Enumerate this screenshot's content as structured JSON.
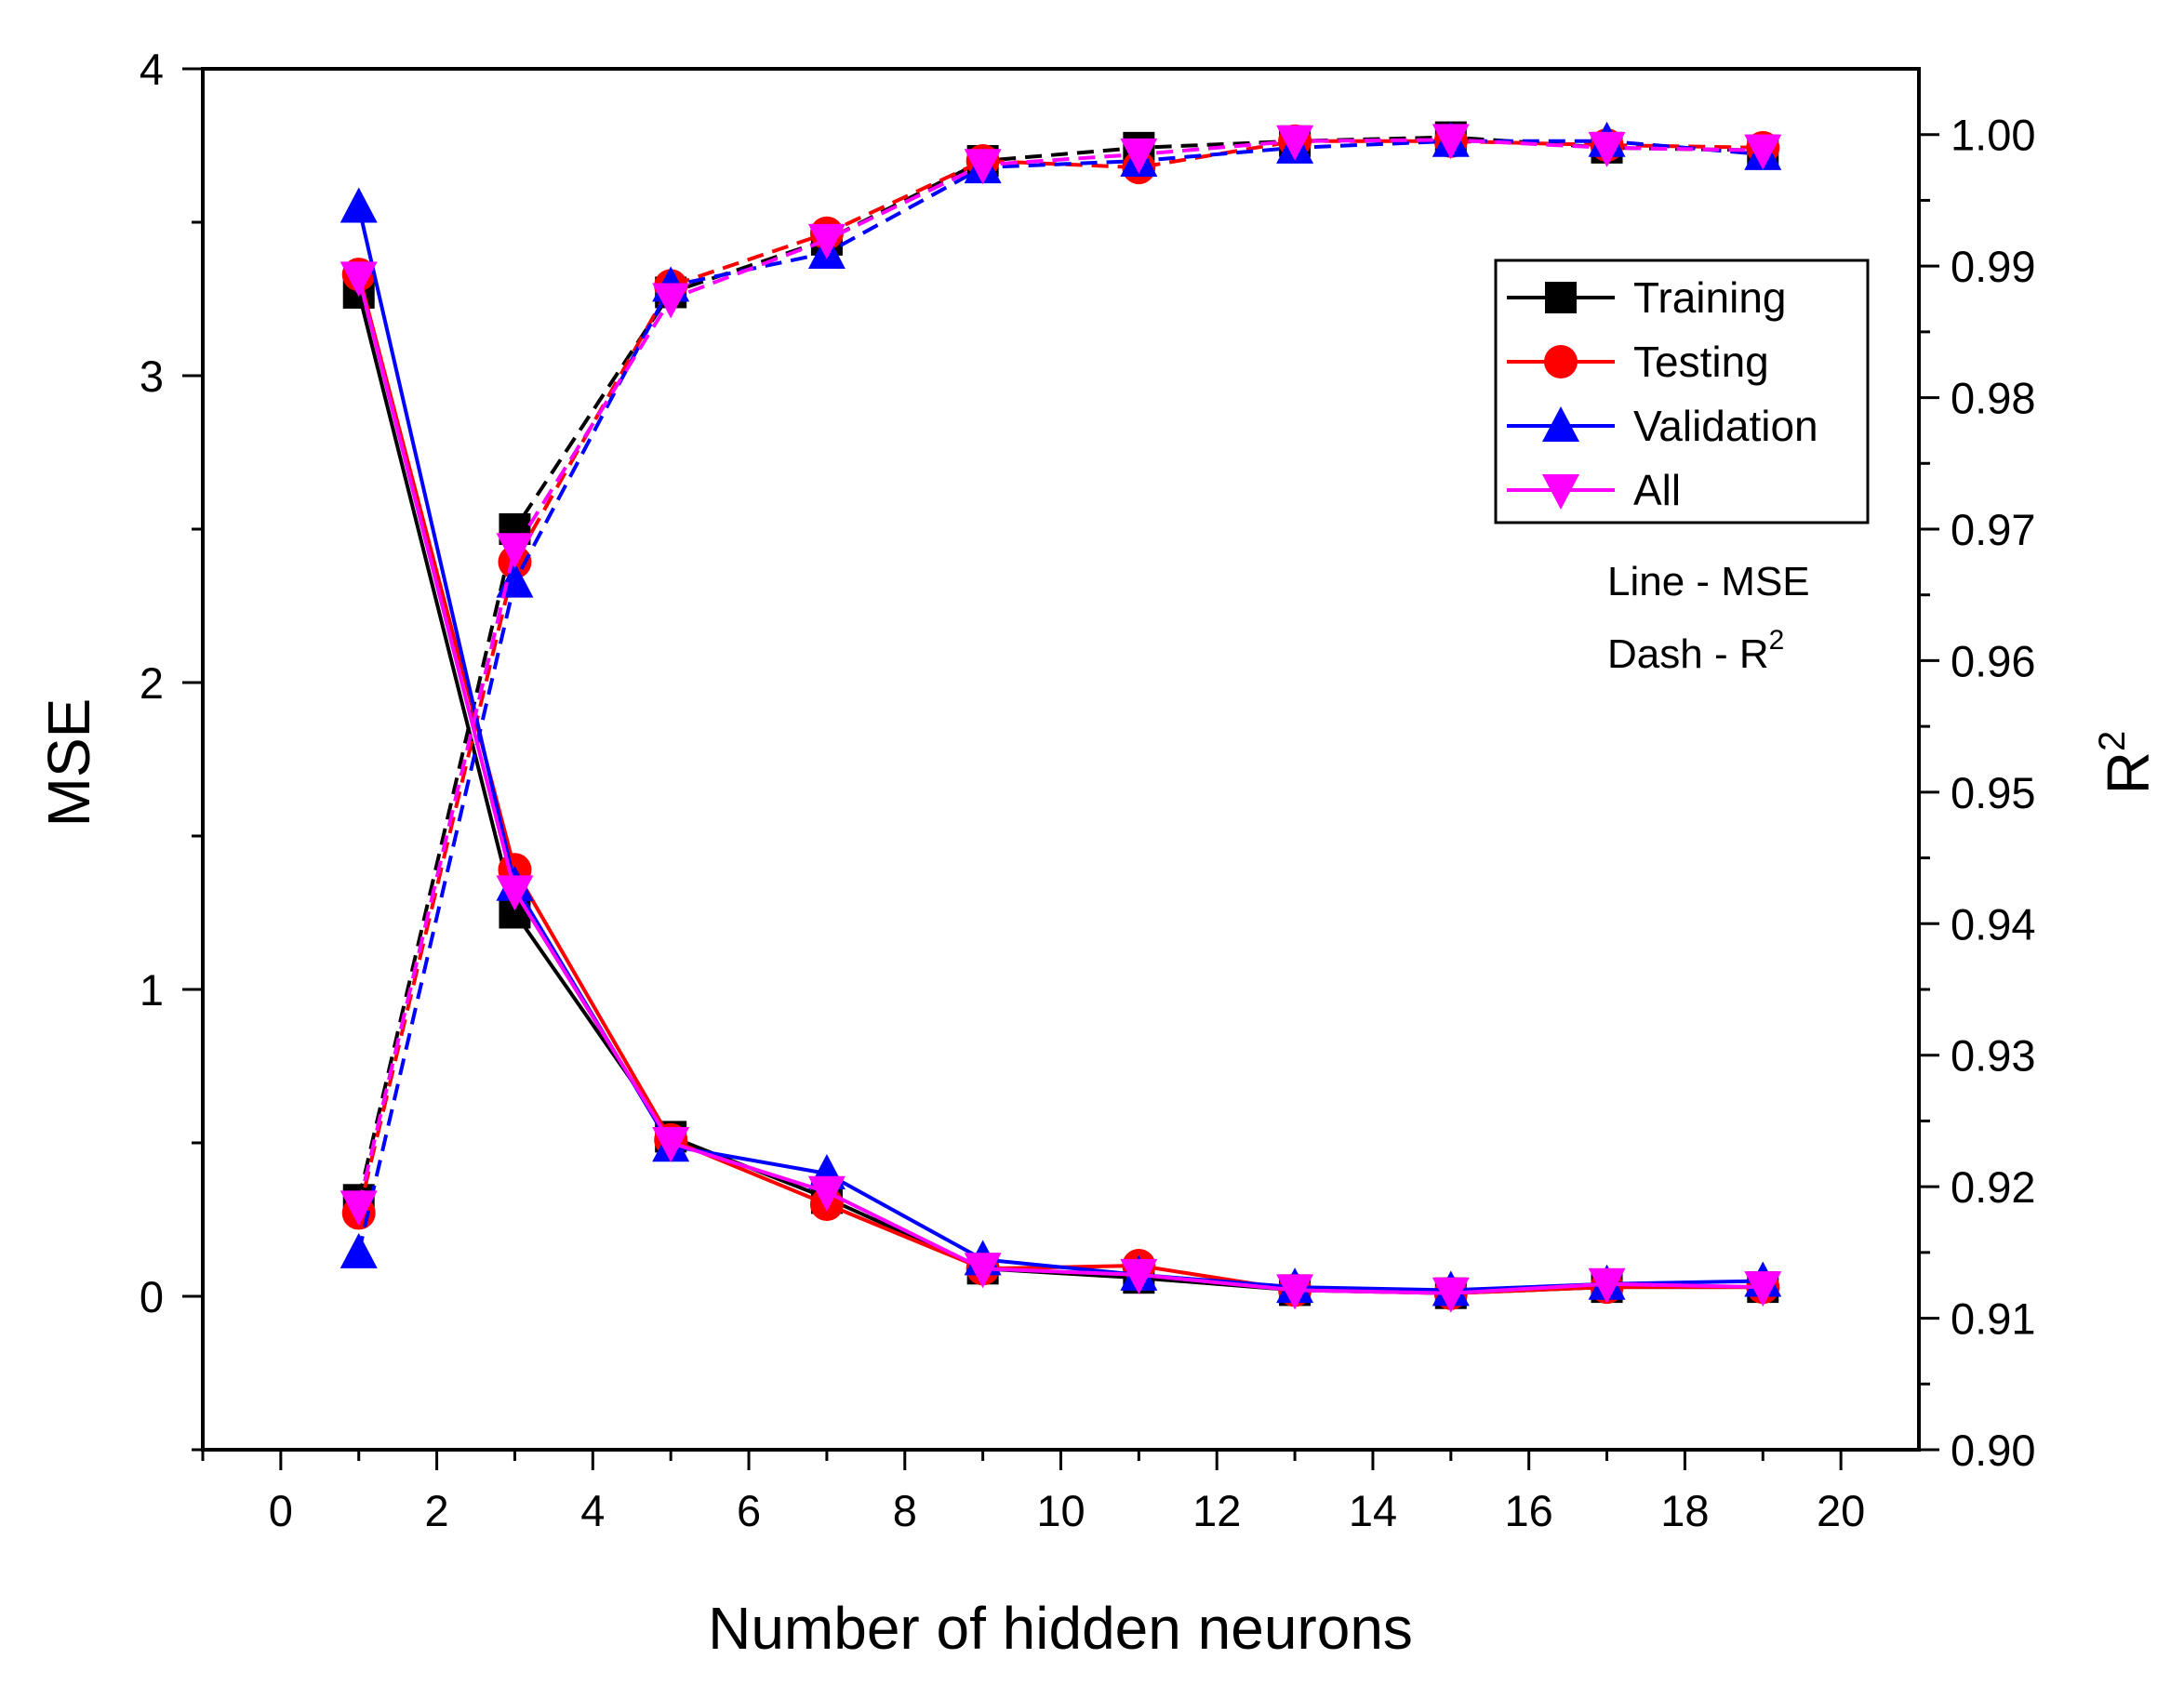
{
  "chart_data": {
    "type": "line",
    "xlabel": "Number of hidden neurons",
    "ylabel_left": "MSE",
    "ylabel_right_base": "R",
    "ylabel_right_sup": "2",
    "xlim": [
      -1,
      21
    ],
    "ylim_left": [
      -0.5,
      4
    ],
    "ylim_right": [
      0.9,
      1.005
    ],
    "x_ticks": [
      0,
      2,
      4,
      6,
      8,
      10,
      12,
      14,
      16,
      18,
      20
    ],
    "x_tick_labels": [
      "0",
      "2",
      "4",
      "6",
      "8",
      "10",
      "12",
      "14",
      "16",
      "18",
      "20"
    ],
    "y_left_ticks": [
      0,
      1,
      2,
      3,
      4
    ],
    "y_left_tick_labels": [
      "0",
      "1",
      "2",
      "3",
      "4"
    ],
    "y_right_ticks": [
      0.9,
      0.91,
      0.92,
      0.93,
      0.94,
      0.95,
      0.96,
      0.97,
      0.98,
      0.99,
      1.0
    ],
    "y_right_tick_labels": [
      "0.90",
      "0.91",
      "0.92",
      "0.93",
      "0.94",
      "0.95",
      "0.96",
      "0.97",
      "0.98",
      "0.99",
      "1.00"
    ],
    "x": [
      1,
      3,
      5,
      7,
      9,
      11,
      13,
      15,
      17,
      19
    ],
    "series": [
      {
        "name": "Training",
        "color": "#000000",
        "marker": "square",
        "mse": [
          3.27,
          1.25,
          0.52,
          0.32,
          0.09,
          0.06,
          0.02,
          0.01,
          0.03,
          0.03
        ],
        "r2": [
          0.919,
          0.97,
          0.988,
          0.992,
          0.998,
          0.999,
          0.9995,
          0.9998,
          0.999,
          0.9988
        ]
      },
      {
        "name": "Testing",
        "color": "#ff0000",
        "marker": "circle",
        "mse": [
          3.33,
          1.39,
          0.51,
          0.3,
          0.09,
          0.1,
          0.02,
          0.01,
          0.03,
          0.03
        ],
        "r2": [
          0.918,
          0.9675,
          0.9885,
          0.9925,
          0.998,
          0.9975,
          0.9995,
          0.9995,
          0.9992,
          0.999
        ]
      },
      {
        "name": "Validation",
        "color": "#0000ff",
        "marker": "triangle-up",
        "mse": [
          3.55,
          1.34,
          0.49,
          0.4,
          0.12,
          0.07,
          0.03,
          0.02,
          0.04,
          0.05
        ],
        "r2": [
          0.915,
          0.966,
          0.9885,
          0.991,
          0.9975,
          0.998,
          0.999,
          0.9995,
          0.9995,
          0.9985
        ]
      },
      {
        "name": "All",
        "color": "#ff00ff",
        "marker": "triangle-down",
        "mse": [
          3.32,
          1.32,
          0.5,
          0.34,
          0.09,
          0.07,
          0.02,
          0.01,
          0.04,
          0.03
        ],
        "r2": [
          0.9185,
          0.9685,
          0.9875,
          0.992,
          0.9977,
          0.9985,
          0.9995,
          0.9996,
          0.999,
          0.9988
        ]
      }
    ],
    "annotation_line": "Line - MSE",
    "annotation_dash_base": "Dash - R",
    "annotation_dash_sup": "2",
    "legend_position": "top-right"
  }
}
